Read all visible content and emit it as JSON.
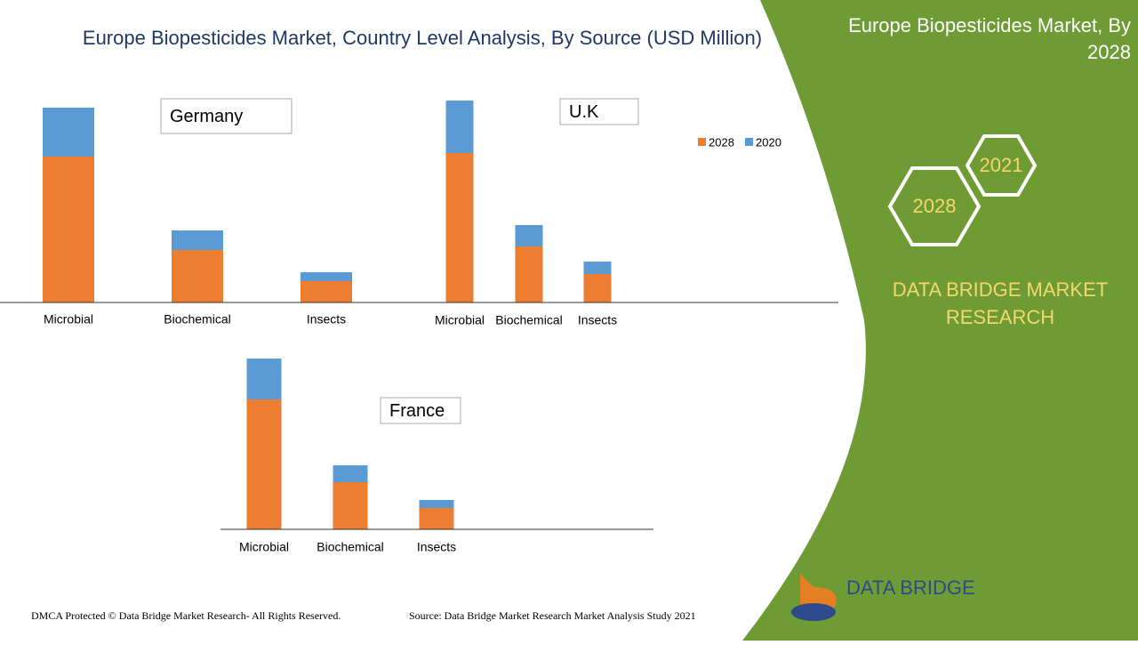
{
  "title": "Europe Biopesticides Market, Country Level Analysis, By Source (USD Million)",
  "chart_data": [
    {
      "type": "bar",
      "stacked": true,
      "title": "Germany",
      "categories": [
        "Microbial",
        "Biochemical",
        "Insects"
      ],
      "series": [
        {
          "name": "2028",
          "color": "#ed7d31",
          "values": [
            164,
            59,
            24
          ]
        },
        {
          "name": "2020",
          "color": "#5b9bd5",
          "values": [
            55,
            22,
            10
          ]
        }
      ]
    },
    {
      "type": "bar",
      "stacked": true,
      "title": "U.K",
      "categories": [
        "Microbial",
        "Biochemical",
        "Insects"
      ],
      "series": [
        {
          "name": "2028",
          "color": "#ed7d31",
          "values": [
            168,
            63,
            32
          ]
        },
        {
          "name": "2020",
          "color": "#5b9bd5",
          "values": [
            59,
            24,
            14
          ]
        }
      ]
    },
    {
      "type": "bar",
      "stacked": true,
      "title": "France",
      "categories": [
        "Microbial",
        "Biochemical",
        "Insects"
      ],
      "series": [
        {
          "name": "2028",
          "color": "#ed7d31",
          "values": [
            146,
            53,
            24
          ]
        },
        {
          "name": "2020",
          "color": "#5b9bd5",
          "values": [
            46,
            19,
            9
          ]
        }
      ]
    }
  ],
  "panel": {
    "title": "Europe Biopesticides Market, By 2028",
    "hex_2021": "2021",
    "hex_2028": "2028",
    "brand": "DATA BRIDGE MARKET RESEARCH",
    "logo": "DATA BRIDGE"
  },
  "footer": {
    "dmca": "DMCA Protected © Data Bridge Market Research- All Rights Reserved.",
    "source": "Source: Data Bridge Market Research Market Analysis Study 2021"
  }
}
